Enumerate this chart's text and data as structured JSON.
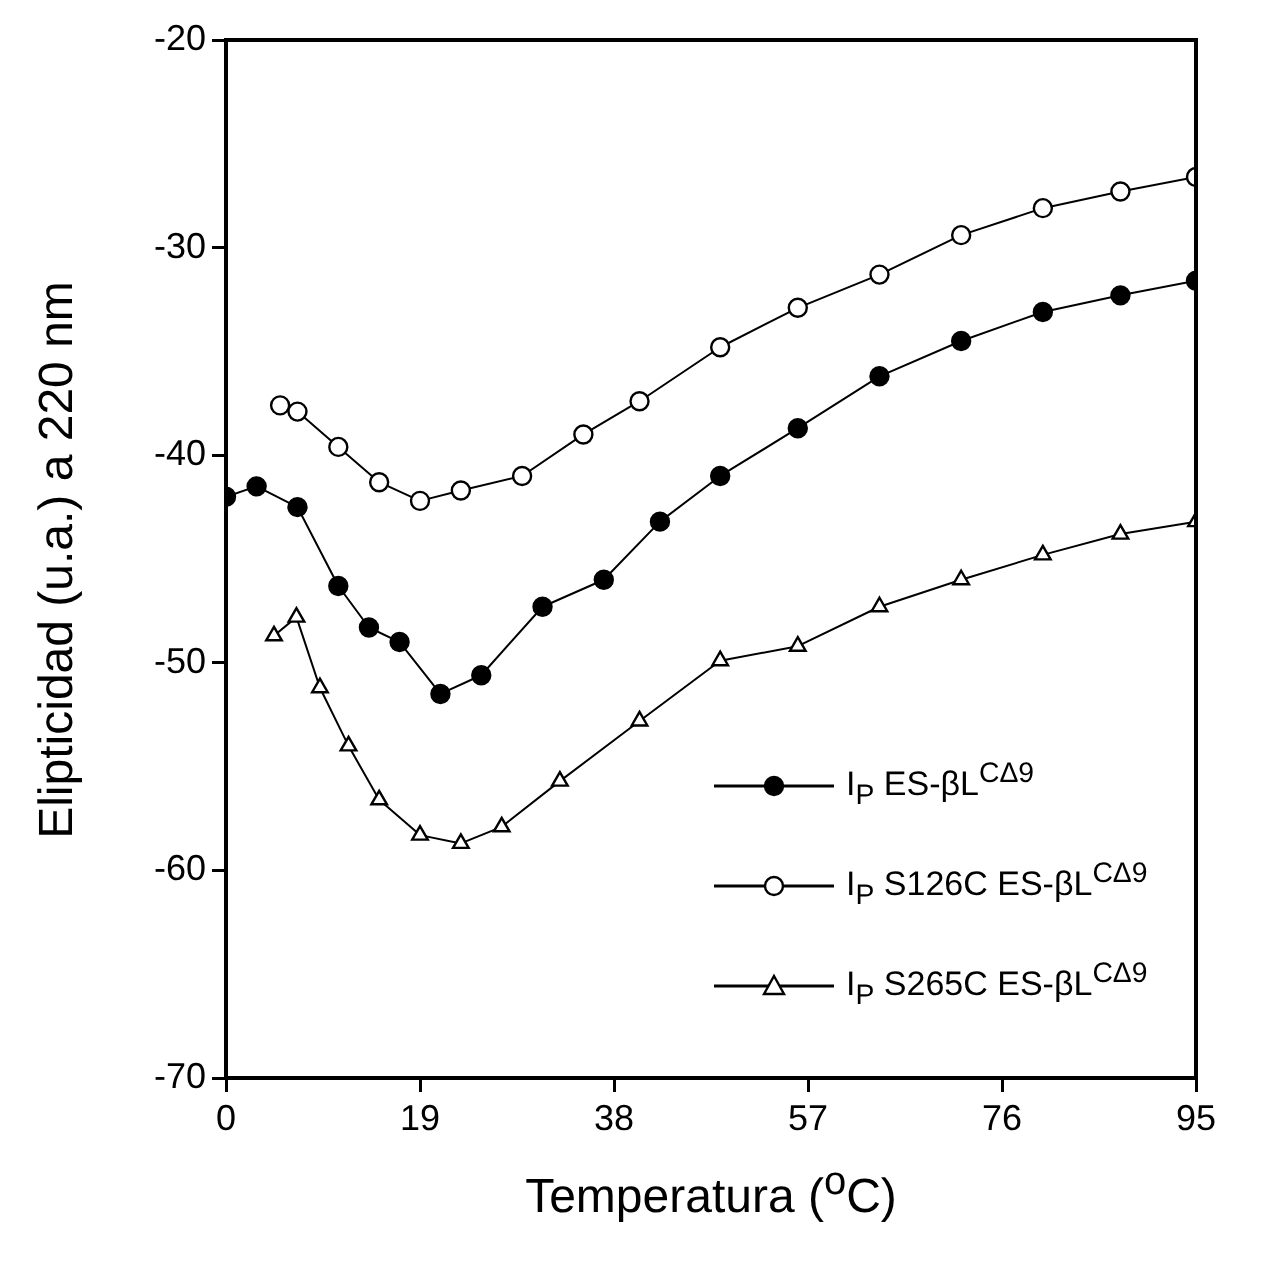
{
  "chart_data": {
    "type": "line",
    "xlabel": "Temperatura ($^{o}$C)",
    "ylabel": "Elipticidad (u.a.) a 220 nm",
    "xlim": [
      0,
      95
    ],
    "xticks": [
      0,
      19,
      38,
      57,
      76,
      95
    ],
    "ylim": [
      -70,
      -20
    ],
    "yticks": [
      -70,
      -60,
      -50,
      -40,
      -30,
      -20
    ],
    "legend": "bottom right",
    "series": [
      {
        "name": "I$_{P}$ ES-βL$^{CΔ9}$",
        "color": "#000000",
        "marker": "circle",
        "x": [
          0,
          3,
          7,
          11,
          14,
          17,
          21,
          25,
          31,
          37,
          42.5,
          48.4,
          56,
          64,
          72,
          80,
          87.6,
          95
        ],
        "values": [
          -42,
          -41.5,
          -42.5,
          -46.3,
          -48.3,
          -49,
          -51.5,
          -50.6,
          -47.3,
          -46,
          -43.2,
          -41,
          -38.7,
          -36.2,
          -34.5,
          -33.1,
          -32.3,
          -31.6
        ]
      },
      {
        "name": "I$_{P}$ S126C ES-βL$^{CΔ9}$",
        "color": "#ffffff",
        "marker": "circle",
        "x": [
          5.3,
          7,
          11,
          15,
          19,
          23,
          29,
          35,
          40.5,
          48.4,
          56,
          64,
          72,
          80,
          87.6,
          95
        ],
        "values": [
          -37.6,
          -37.9,
          -39.6,
          -41.3,
          -42.2,
          -41.7,
          -41,
          -39,
          -37.4,
          -34.8,
          -32.9,
          -31.3,
          -29.4,
          -28.1,
          -27.3,
          -26.6
        ]
      },
      {
        "name": "I$_{P}$ S265C ES-βL$^{CΔ9}$",
        "color": "#ffffff",
        "marker": "triangle",
        "x": [
          4.7,
          6.9,
          9.2,
          12,
          15,
          19,
          23,
          27,
          32.7,
          40.5,
          48.4,
          56,
          64,
          72,
          80,
          87.6,
          95
        ],
        "values": [
          -48.7,
          -47.8,
          -51.2,
          -54,
          -56.6,
          -58.3,
          -58.7,
          -57.9,
          -55.7,
          -52.8,
          -49.9,
          -49.2,
          -47.3,
          -46,
          -44.8,
          -43.8,
          -43.2
        ]
      }
    ]
  }
}
